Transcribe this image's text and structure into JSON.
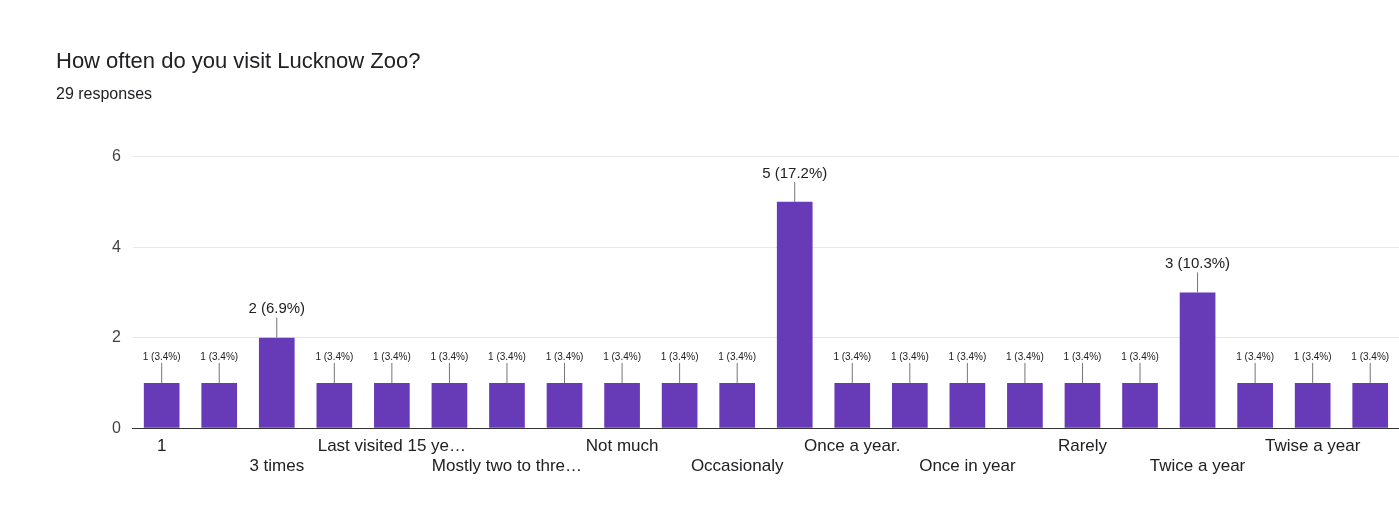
{
  "chart_data": {
    "type": "bar",
    "title": "How often do you visit Lucknow Zoo?",
    "subtitle": "29 responses",
    "categories": [
      "1",
      null,
      "3 times",
      null,
      "Last visited 15 ye…",
      null,
      "Mostly two to thre…",
      null,
      "Not much",
      null,
      "Occasionaly",
      null,
      "Once a year.",
      null,
      "Once in year",
      null,
      "Rarely",
      null,
      "Twice a year",
      null,
      "Twise a year",
      null
    ],
    "values": [
      1,
      1,
      2,
      1,
      1,
      1,
      1,
      1,
      1,
      1,
      1,
      5,
      1,
      1,
      1,
      1,
      1,
      1,
      3,
      1,
      1,
      1
    ],
    "value_labels": [
      "1 (3.4%)",
      "1 (3.4%)",
      "2 (6.9%)",
      "1 (3.4%)",
      "1 (3.4%)",
      "1 (3.4%)",
      "1 (3.4%)",
      "1 (3.4%)",
      "1 (3.4%)",
      "1 (3.4%)",
      "1 (3.4%)",
      "5 (17.2%)",
      "1 (3.4%)",
      "1 (3.4%)",
      "1 (3.4%)",
      "1 (3.4%)",
      "1 (3.4%)",
      "1 (3.4%)",
      "3 (10.3%)",
      "1 (3.4%)",
      "1 (3.4%)",
      "1 (3.4%)"
    ],
    "color": "#673ab7",
    "ylim": [
      0,
      6
    ],
    "yticks": [
      0,
      2,
      4,
      6
    ],
    "grid": "y",
    "legend": false
  }
}
